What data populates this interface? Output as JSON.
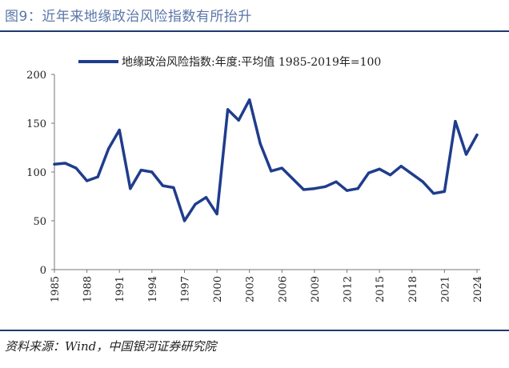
{
  "figure": {
    "title": "图9：近年来地缘政治风险指数有所抬升",
    "source": "资料来源：Wind，中国银河证券研究院"
  },
  "chart_data": {
    "type": "line",
    "title": "",
    "xlabel": "",
    "ylabel": "",
    "ylim": [
      0,
      200
    ],
    "yticks": [
      0,
      50,
      100,
      150,
      200
    ],
    "xticks": [
      1985,
      1988,
      1991,
      1994,
      1997,
      2000,
      2003,
      2006,
      2009,
      2012,
      2015,
      2018,
      2021,
      2024
    ],
    "grid": false,
    "legend_position": "top",
    "line_color": "#1f3d8c",
    "series": [
      {
        "name": "地缘政治风险指数:年度:平均值 1985-2019年=100",
        "x": [
          1985,
          1986,
          1987,
          1988,
          1989,
          1990,
          1991,
          1992,
          1993,
          1994,
          1995,
          1996,
          1997,
          1998,
          1999,
          2000,
          2001,
          2002,
          2003,
          2004,
          2005,
          2006,
          2007,
          2008,
          2009,
          2010,
          2011,
          2012,
          2013,
          2014,
          2015,
          2016,
          2017,
          2018,
          2019,
          2020,
          2021,
          2022,
          2023,
          2024
        ],
        "values": [
          108,
          109,
          104,
          91,
          95,
          124,
          143,
          83,
          102,
          100,
          86,
          84,
          50,
          67,
          74,
          57,
          164,
          153,
          174,
          129,
          101,
          104,
          93,
          82,
          83,
          85,
          90,
          81,
          83,
          99,
          103,
          97,
          106,
          98,
          90,
          78,
          80,
          152,
          118,
          138
        ]
      }
    ]
  }
}
